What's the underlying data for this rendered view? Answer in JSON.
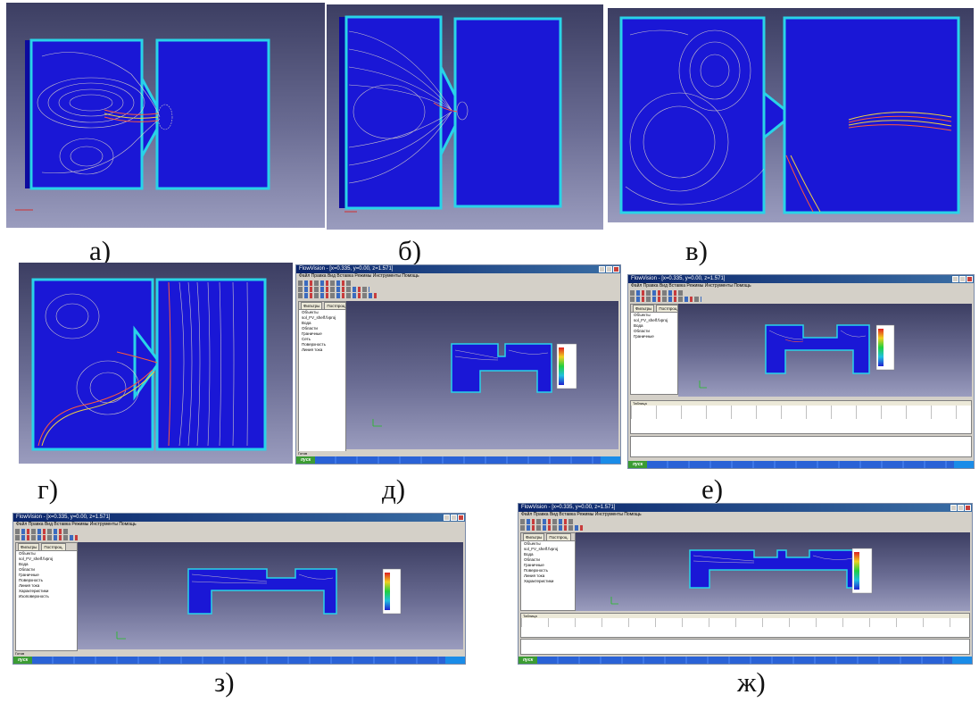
{
  "captions": {
    "a": "а)",
    "b": "б)",
    "v": "в)",
    "g": "г)",
    "d": "д)",
    "e": "е)",
    "z": "з)",
    "zh": "ж)"
  },
  "window": {
    "title": "FlowVision - [x=0.335, y=0.00, z=1.571]",
    "menu": "Файл  Правка  Вид  Вставка  Режимы  Инструменты  Помощь",
    "tab_filters": "Фильтры",
    "tab_postproc": "Постпроц.",
    "tree_root": "Объекты",
    "tree_project": "sol_FV_shelf.fvproj",
    "tree_items": [
      "Вода",
      "Области",
      "Граничные",
      "Сеть",
      "Поверхность",
      "Линия тока",
      "Характеристики",
      "Изоповерхность"
    ],
    "table_title": "Таблица",
    "status": "Готов",
    "start_label": "пуск"
  },
  "colors": {
    "fluid_blue": "#1a17d6",
    "wall_cyan": "#29d3e8",
    "streamline": "#e8e0c8",
    "taskbar_blue": "#245edb"
  }
}
